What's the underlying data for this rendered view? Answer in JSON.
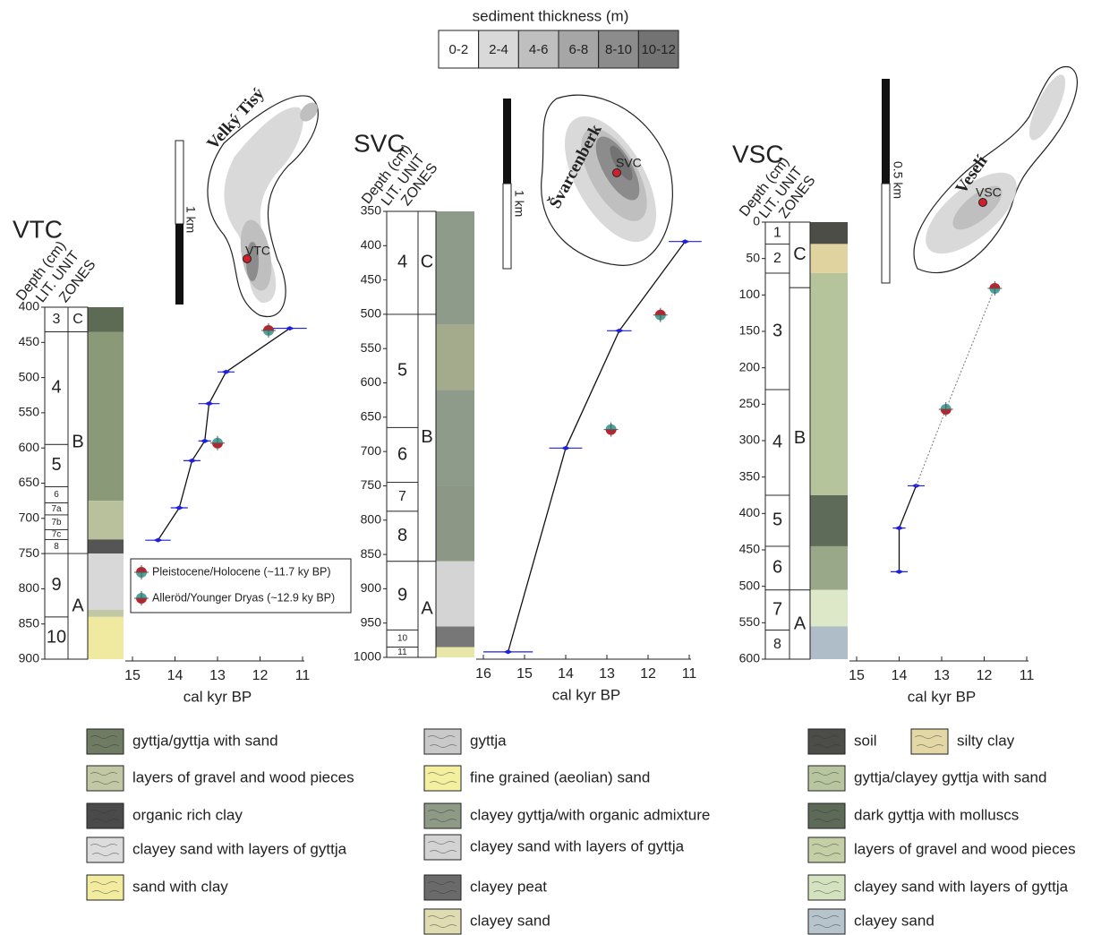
{
  "thickness_legend": {
    "title": "sediment thickness (m)",
    "classes": [
      "0-2",
      "2-4",
      "4-6",
      "6-8",
      "8-10",
      "10-12"
    ],
    "colors": [
      "#ffffff",
      "#d9d9d9",
      "#bfbfbf",
      "#a6a6a6",
      "#8c8c8c",
      "#737373"
    ]
  },
  "maps": [
    {
      "name": "Velký Tisý",
      "site": "VTC",
      "scale": "1 km"
    },
    {
      "name": "Švarcenberk",
      "site": "SVC",
      "scale": "1 km"
    },
    {
      "name": "Veselí",
      "site": "VSC",
      "scale": "0.5 km"
    }
  ],
  "event_legend": [
    {
      "name": "Pleistocene/Holocene (~11.7 ky BP)",
      "color": "#c0202a"
    },
    {
      "name": "Alleröd/Younger Dryas (~12.9 ky BP)",
      "color": "#4aa39a"
    }
  ],
  "chart_data": [
    {
      "type": "line",
      "title": "VTC",
      "y_label": "Depth (cm)",
      "unit_label": "LIT. UNIT",
      "zone_label": "ZONES",
      "x_label": "cal kyr BP",
      "xlim": [
        15,
        11
      ],
      "xticks": [
        15,
        14,
        13,
        12,
        11
      ],
      "ylim": [
        400,
        900
      ],
      "yticks": [
        400,
        450,
        500,
        550,
        600,
        650,
        700,
        750,
        800,
        850,
        900
      ],
      "series": [
        {
          "color": "#1f1fe0",
          "line_style": "solid",
          "x": [
            11.3,
            12.8,
            13.2,
            13.3,
            13.6,
            13.9,
            14.4
          ],
          "values": [
            430,
            492,
            537,
            590,
            618,
            685,
            731
          ],
          "xerr": [
            0.4,
            0.2,
            0.25,
            0.15,
            0.2,
            0.2,
            0.3
          ]
        }
      ],
      "events": [
        {
          "x": 11.8,
          "y": 433
        },
        {
          "x": 13.0,
          "y": 593
        }
      ],
      "units": [
        {
          "label": "C",
          "top": 400,
          "bottom": 435
        },
        {
          "label": "B",
          "top": 435,
          "bottom": 750
        },
        {
          "label": "A",
          "top": 750,
          "bottom": 900
        }
      ],
      "zones": [
        {
          "label": "3",
          "top": 400,
          "bottom": 435
        },
        {
          "label": "4",
          "top": 435,
          "bottom": 595
        },
        {
          "label": "5",
          "top": 595,
          "bottom": 655
        },
        {
          "label": "6",
          "top": 655,
          "bottom": 678
        },
        {
          "label": "7a",
          "top": 678,
          "bottom": 695
        },
        {
          "label": "7b",
          "top": 695,
          "bottom": 716
        },
        {
          "label": "7c",
          "top": 716,
          "bottom": 730
        },
        {
          "label": "8",
          "top": 730,
          "bottom": 750
        },
        {
          "label": "9",
          "top": 750,
          "bottom": 840
        },
        {
          "label": "10",
          "top": 840,
          "bottom": 900
        }
      ],
      "lithology": [
        {
          "top": 400,
          "bottom": 435,
          "color": "#5d6b55"
        },
        {
          "top": 435,
          "bottom": 675,
          "color": "#8a9a78"
        },
        {
          "top": 675,
          "bottom": 730,
          "color": "#b8c09c"
        },
        {
          "top": 730,
          "bottom": 750,
          "color": "#555555"
        },
        {
          "top": 750,
          "bottom": 830,
          "color": "#d8d8d8"
        },
        {
          "top": 830,
          "bottom": 840,
          "color": "#c2c8a4"
        },
        {
          "top": 840,
          "bottom": 900,
          "color": "#f0eaa0"
        }
      ]
    },
    {
      "type": "line",
      "title": "SVC",
      "y_label": "Depth (cm)",
      "unit_label": "LIT. UNIT",
      "zone_label": "ZONES",
      "x_label": "cal kyr BP",
      "xlim": [
        16,
        11
      ],
      "xticks": [
        16,
        15,
        14,
        13,
        12,
        11
      ],
      "ylim": [
        350,
        1000
      ],
      "yticks": [
        350,
        400,
        450,
        500,
        550,
        600,
        650,
        700,
        750,
        800,
        850,
        900,
        950,
        1000
      ],
      "series": [
        {
          "color": "#1f1fe0",
          "line_style": "solid",
          "x": [
            11.1,
            12.7,
            14.0,
            15.4
          ],
          "values": [
            394,
            524,
            695,
            992
          ],
          "xerr": [
            0.4,
            0.3,
            0.4,
            0.6
          ]
        }
      ],
      "events": [
        {
          "x": 11.7,
          "y": 501
        },
        {
          "x": 12.9,
          "y": 668
        }
      ],
      "units": [
        {
          "label": "C",
          "top": 350,
          "bottom": 500
        },
        {
          "label": "B",
          "top": 500,
          "bottom": 860
        },
        {
          "label": "A",
          "top": 860,
          "bottom": 1000
        }
      ],
      "zones": [
        {
          "label": "4",
          "top": 350,
          "bottom": 500
        },
        {
          "label": "5",
          "top": 500,
          "bottom": 665
        },
        {
          "label": "6",
          "top": 665,
          "bottom": 745
        },
        {
          "label": "7",
          "top": 745,
          "bottom": 787
        },
        {
          "label": "8",
          "top": 787,
          "bottom": 860
        },
        {
          "label": "9",
          "top": 860,
          "bottom": 960
        },
        {
          "label": "10",
          "top": 960,
          "bottom": 985
        },
        {
          "label": "11",
          "top": 985,
          "bottom": 1000
        }
      ],
      "lithology": [
        {
          "top": 350,
          "bottom": 515,
          "color": "#8e9a8a"
        },
        {
          "top": 515,
          "bottom": 610,
          "color": "#a3ab8c"
        },
        {
          "top": 610,
          "bottom": 750,
          "color": "#8e9a8a"
        },
        {
          "top": 750,
          "bottom": 860,
          "color": "#8c9785"
        },
        {
          "top": 860,
          "bottom": 955,
          "color": "#d4d4d4"
        },
        {
          "top": 955,
          "bottom": 985,
          "color": "#777777"
        },
        {
          "top": 985,
          "bottom": 1000,
          "color": "#e8e6a8"
        }
      ]
    },
    {
      "type": "line",
      "title": "VSC",
      "y_label": "Depth (cm)",
      "unit_label": "LIT. UNIT",
      "zone_label": "ZONES",
      "x_label": "cal kyr BP",
      "xlim": [
        15,
        11
      ],
      "xticks": [
        15,
        14,
        13,
        12,
        11
      ],
      "ylim": [
        0,
        600
      ],
      "yticks": [
        0,
        50,
        100,
        150,
        200,
        250,
        300,
        350,
        400,
        450,
        500,
        550,
        600
      ],
      "series": [
        {
          "color": "#1f1fe0",
          "line_style": "solid",
          "x": [
            13.6,
            14.0,
            14.0
          ],
          "values": [
            362,
            420,
            480
          ],
          "xerr": [
            0.2,
            0.15,
            0.2
          ]
        },
        {
          "color": "#777777",
          "line_style": "dotted",
          "x": [
            11.75,
            12.9,
            13.6
          ],
          "values": [
            90,
            257,
            362
          ]
        }
      ],
      "events": [
        {
          "x": 11.75,
          "y": 91
        },
        {
          "x": 12.9,
          "y": 257
        }
      ],
      "units": [
        {
          "label": "C",
          "top": 0,
          "bottom": 90
        },
        {
          "label": "B",
          "top": 90,
          "bottom": 505
        },
        {
          "label": "A",
          "top": 505,
          "bottom": 600
        }
      ],
      "zones": [
        {
          "label": "1",
          "top": 0,
          "bottom": 30
        },
        {
          "label": "2",
          "top": 30,
          "bottom": 70
        },
        {
          "label": "3",
          "top": 70,
          "bottom": 230
        },
        {
          "label": "4",
          "top": 230,
          "bottom": 375
        },
        {
          "label": "5",
          "top": 375,
          "bottom": 445
        },
        {
          "label": "6",
          "top": 445,
          "bottom": 505
        },
        {
          "label": "7",
          "top": 505,
          "bottom": 560
        },
        {
          "label": "8",
          "top": 560,
          "bottom": 600
        }
      ],
      "lithology": [
        {
          "top": 0,
          "bottom": 30,
          "color": "#4d4d48"
        },
        {
          "top": 30,
          "bottom": 70,
          "color": "#e0d3a0"
        },
        {
          "top": 70,
          "bottom": 375,
          "color": "#b5c49a"
        },
        {
          "top": 375,
          "bottom": 445,
          "color": "#5e6b58"
        },
        {
          "top": 445,
          "bottom": 505,
          "color": "#9aa88a"
        },
        {
          "top": 505,
          "bottom": 555,
          "color": "#dde8c8"
        },
        {
          "top": 555,
          "bottom": 600,
          "color": "#aebdc8"
        }
      ]
    }
  ],
  "lithology_legend": [
    [
      {
        "label": "gyttja/gyttja with sand",
        "color": "#6f7c63"
      },
      {
        "label": "layers of gravel and wood pieces",
        "color": "#c2c8a4"
      },
      {
        "label": "organic rich clay",
        "color": "#4a4a4a"
      },
      {
        "label": "clayey sand with layers of gyttja",
        "color": "#dcdcdc"
      },
      {
        "label": "sand with clay",
        "color": "#f1ec9e"
      }
    ],
    [
      {
        "label": "gyttja",
        "color": "#c9c9c9"
      },
      {
        "label": "fine grained (aeolian) sand",
        "color": "#f3f0a0"
      },
      {
        "label": "clayey gyttja/with organic admixture",
        "color": "#8f9a86"
      },
      {
        "label": "clayey sand with layers of gyttja",
        "color": "#d3d3d3"
      },
      {
        "label": "clayey peat",
        "color": "#6a6a6a"
      },
      {
        "label": "clayey sand",
        "color": "#dedcb0"
      }
    ],
    [
      {
        "label": "soil",
        "color": "#4c4c48"
      },
      {
        "label": "silty clay",
        "color": "#e3d7a6"
      },
      {
        "label": "gyttja/clayey gyttja with sand",
        "color": "#b7c69e"
      },
      {
        "label": "dark gyttja with molluscs",
        "color": "#5e6a58"
      },
      {
        "label": "layers of gravel and wood pieces",
        "color": "#c5cfa5"
      },
      {
        "label": "clayey sand with layers of gyttja",
        "color": "#d5e2bf"
      },
      {
        "label": "clayey sand",
        "color": "#b7c4cc"
      }
    ]
  ]
}
